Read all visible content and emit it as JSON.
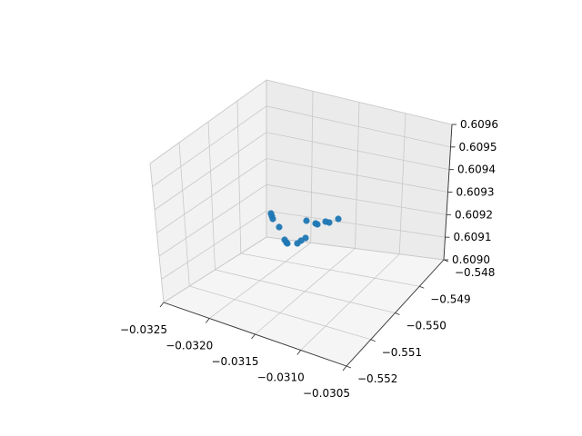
{
  "chart_data": {
    "type": "scatter",
    "title": "",
    "xlabel": "",
    "ylabel": "",
    "zlabel": "",
    "grid": true,
    "xlim": [
      -0.0325,
      -0.0305
    ],
    "ylim": [
      -0.552,
      -0.548
    ],
    "zlim": [
      0.609,
      0.6096
    ],
    "x_ticks": [
      "−0.0325",
      "−0.0320",
      "−0.0315",
      "−0.0310",
      "−0.0305"
    ],
    "y_ticks": [
      "−0.552",
      "−0.551",
      "−0.550",
      "−0.549",
      "−0.548"
    ],
    "z_ticks": [
      "0.6090",
      "0.6091",
      "0.6092",
      "0.6093",
      "0.6094",
      "0.6095",
      "0.6096"
    ],
    "series": [
      {
        "color": "#1f77b4",
        "points": [
          {
            "x": -0.03225,
            "y": -0.54985,
            "z": 0.60918
          },
          {
            "x": -0.03224,
            "y": -0.54988,
            "z": 0.60916
          },
          {
            "x": -0.0322,
            "y": -0.54994,
            "z": 0.60913
          },
          {
            "x": -0.03198,
            "y": -0.5505,
            "z": 0.60915
          },
          {
            "x": -0.03195,
            "y": -0.5505,
            "z": 0.60914
          },
          {
            "x": -0.0319,
            "y": -0.55052,
            "z": 0.60913
          },
          {
            "x": -0.03175,
            "y": -0.5508,
            "z": 0.60922
          },
          {
            "x": -0.0317,
            "y": -0.55082,
            "z": 0.60922
          },
          {
            "x": -0.03165,
            "y": -0.55092,
            "z": 0.60924
          },
          {
            "x": -0.0316,
            "y": -0.55095,
            "z": 0.60925
          },
          {
            "x": -0.0314,
            "y": -0.5511,
            "z": 0.60928
          },
          {
            "x": -0.03138,
            "y": -0.5511,
            "z": 0.60928
          },
          {
            "x": -0.03135,
            "y": -0.55125,
            "z": 0.60918
          },
          {
            "x": -0.03125,
            "y": -0.55135,
            "z": 0.60916
          },
          {
            "x": -0.0314,
            "y": -0.55,
            "z": 0.60905
          },
          {
            "x": -0.03138,
            "y": -0.55,
            "z": 0.60904
          }
        ]
      }
    ]
  }
}
